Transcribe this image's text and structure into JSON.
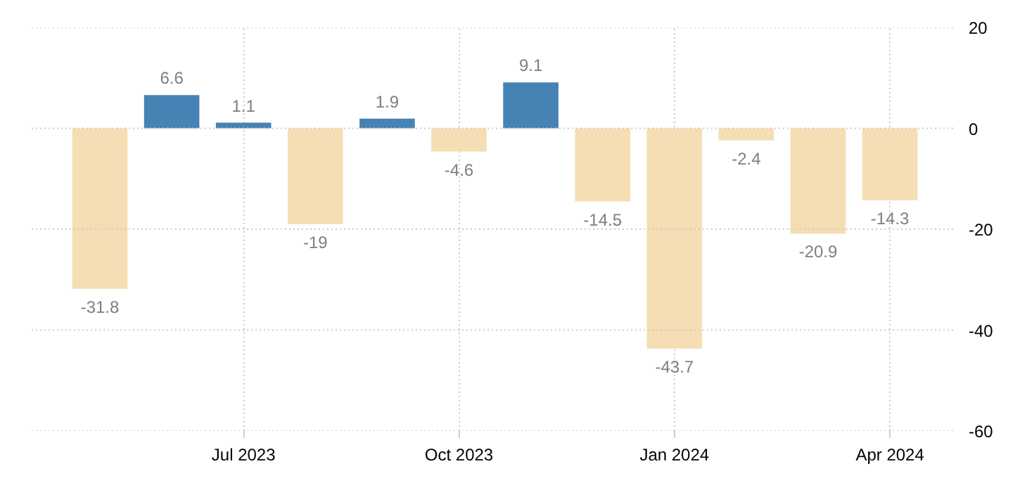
{
  "chart_data": {
    "type": "bar",
    "categories": [
      null,
      null,
      "Jul 2023",
      null,
      null,
      "Oct 2023",
      null,
      null,
      "Jan 2024",
      null,
      null,
      "Apr 2024"
    ],
    "values": [
      -31.8,
      6.6,
      1.1,
      -19,
      1.9,
      -4.6,
      9.1,
      -14.5,
      -43.7,
      -2.4,
      -20.9,
      -14.3
    ],
    "colors": [
      "#f5deb3",
      "#4682b4",
      "#4682b4",
      "#f5deb3",
      "#4682b4",
      "#f5deb3",
      "#4682b4",
      "#f5deb3",
      "#f5deb3",
      "#f5deb3",
      "#f5deb3",
      "#f5deb3"
    ],
    "ylim": [
      -60,
      20
    ],
    "yticks": [
      -60,
      -40,
      -20,
      0,
      20
    ],
    "grid": true,
    "data_labels": true
  }
}
